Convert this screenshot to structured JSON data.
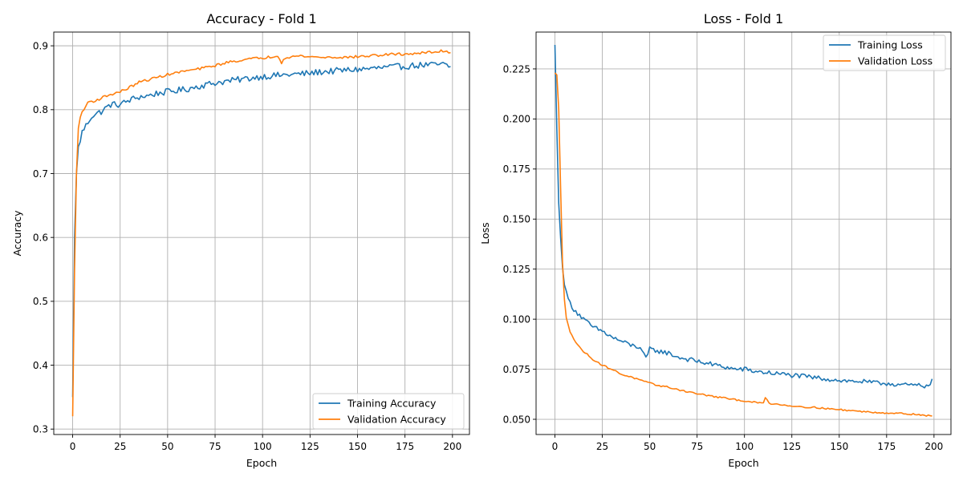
{
  "chart_data": [
    {
      "type": "line",
      "title": "Accuracy - Fold 1",
      "xlabel": "Epoch",
      "ylabel": "Accuracy",
      "xlim": [
        -9.95,
        208.95
      ],
      "ylim": [
        0.2915,
        0.9215
      ],
      "xticks": [
        0,
        25,
        50,
        75,
        100,
        125,
        150,
        175,
        200
      ],
      "yticks": [
        0.3,
        0.4,
        0.5,
        0.6,
        0.7,
        0.8,
        0.9
      ],
      "ytick_decimals": 1,
      "grid": true,
      "legend_position": "lower-right",
      "epochs": 200,
      "series": [
        {
          "name": "Training Accuracy",
          "color": "#1f77b4",
          "points": [
            [
              0,
              0.35
            ],
            [
              1,
              0.6
            ],
            [
              2,
              0.7
            ],
            [
              3,
              0.74
            ],
            [
              5,
              0.765
            ],
            [
              8,
              0.78
            ],
            [
              10,
              0.79
            ],
            [
              15,
              0.797
            ],
            [
              20,
              0.808
            ],
            [
              25,
              0.808
            ],
            [
              30,
              0.815
            ],
            [
              35,
              0.82
            ],
            [
              40,
              0.822
            ],
            [
              45,
              0.826
            ],
            [
              50,
              0.828
            ],
            [
              55,
              0.83
            ],
            [
              60,
              0.832
            ],
            [
              65,
              0.836
            ],
            [
              70,
              0.839
            ],
            [
              75,
              0.842
            ],
            [
              80,
              0.844
            ],
            [
              85,
              0.846
            ],
            [
              90,
              0.848
            ],
            [
              95,
              0.85
            ],
            [
              100,
              0.852
            ],
            [
              105,
              0.853
            ],
            [
              110,
              0.854
            ],
            [
              115,
              0.855
            ],
            [
              120,
              0.856
            ],
            [
              125,
              0.857
            ],
            [
              130,
              0.859
            ],
            [
              135,
              0.86
            ],
            [
              140,
              0.861
            ],
            [
              145,
              0.862
            ],
            [
              150,
              0.863
            ],
            [
              155,
              0.864
            ],
            [
              160,
              0.865
            ],
            [
              165,
              0.866
            ],
            [
              170,
              0.867
            ],
            [
              175,
              0.868
            ],
            [
              180,
              0.869
            ],
            [
              185,
              0.87
            ],
            [
              190,
              0.87
            ],
            [
              195,
              0.871
            ],
            [
              199,
              0.866
            ]
          ],
          "noise": 0.005
        },
        {
          "name": "Validation Accuracy",
          "color": "#ff7f0e",
          "points": [
            [
              0,
              0.32
            ],
            [
              1,
              0.55
            ],
            [
              2,
              0.7
            ],
            [
              3,
              0.77
            ],
            [
              4,
              0.79
            ],
            [
              6,
              0.8
            ],
            [
              8,
              0.812
            ],
            [
              12,
              0.814
            ],
            [
              18,
              0.822
            ],
            [
              25,
              0.828
            ],
            [
              30,
              0.835
            ],
            [
              35,
              0.843
            ],
            [
              40,
              0.847
            ],
            [
              45,
              0.851
            ],
            [
              50,
              0.855
            ],
            [
              55,
              0.858
            ],
            [
              60,
              0.861
            ],
            [
              65,
              0.863
            ],
            [
              70,
              0.866
            ],
            [
              75,
              0.869
            ],
            [
              80,
              0.873
            ],
            [
              85,
              0.876
            ],
            [
              90,
              0.878
            ],
            [
              95,
              0.88
            ],
            [
              100,
              0.881
            ],
            [
              105,
              0.883
            ],
            [
              108,
              0.885
            ],
            [
              110,
              0.874
            ],
            [
              112,
              0.882
            ],
            [
              115,
              0.883
            ],
            [
              120,
              0.884
            ],
            [
              125,
              0.883
            ],
            [
              130,
              0.882
            ],
            [
              135,
              0.882
            ],
            [
              140,
              0.882
            ],
            [
              145,
              0.882
            ],
            [
              150,
              0.883
            ],
            [
              155,
              0.884
            ],
            [
              160,
              0.885
            ],
            [
              165,
              0.886
            ],
            [
              170,
              0.887
            ],
            [
              175,
              0.887
            ],
            [
              180,
              0.888
            ],
            [
              185,
              0.889
            ],
            [
              190,
              0.89
            ],
            [
              195,
              0.892
            ],
            [
              199,
              0.89
            ]
          ],
          "noise": 0.002
        }
      ]
    },
    {
      "type": "line",
      "title": "Loss - Fold 1",
      "xlabel": "Epoch",
      "ylabel": "Loss",
      "xlim": [
        -9.95,
        208.95
      ],
      "ylim": [
        0.0424,
        0.2434
      ],
      "xticks": [
        0,
        25,
        50,
        75,
        100,
        125,
        150,
        175,
        200
      ],
      "yticks": [
        0.05,
        0.075,
        0.1,
        0.125,
        0.15,
        0.175,
        0.2,
        0.225
      ],
      "ytick_decimals": 3,
      "grid": true,
      "legend_position": "upper-right",
      "epochs": 200,
      "series": [
        {
          "name": "Training Loss",
          "color": "#1f77b4",
          "points": [
            [
              0,
              0.237
            ],
            [
              1,
              0.195
            ],
            [
              2,
              0.158
            ],
            [
              3,
              0.14
            ],
            [
              4,
              0.127
            ],
            [
              5,
              0.118
            ],
            [
              6,
              0.113
            ],
            [
              8,
              0.108
            ],
            [
              10,
              0.105
            ],
            [
              15,
              0.1
            ],
            [
              20,
              0.096
            ],
            [
              25,
              0.094
            ],
            [
              30,
              0.091
            ],
            [
              35,
              0.089
            ],
            [
              40,
              0.087
            ],
            [
              45,
              0.086
            ],
            [
              48,
              0.08
            ],
            [
              50,
              0.085
            ],
            [
              55,
              0.084
            ],
            [
              60,
              0.083
            ],
            [
              65,
              0.081
            ],
            [
              70,
              0.08
            ],
            [
              75,
              0.079
            ],
            [
              80,
              0.078
            ],
            [
              85,
              0.077
            ],
            [
              90,
              0.076
            ],
            [
              95,
              0.075
            ],
            [
              100,
              0.075
            ],
            [
              105,
              0.074
            ],
            [
              110,
              0.0735
            ],
            [
              115,
              0.073
            ],
            [
              120,
              0.0725
            ],
            [
              125,
              0.072
            ],
            [
              130,
              0.0715
            ],
            [
              135,
              0.071
            ],
            [
              140,
              0.0705
            ],
            [
              145,
              0.07
            ],
            [
              150,
              0.0695
            ],
            [
              155,
              0.069
            ],
            [
              160,
              0.069
            ],
            [
              165,
              0.0685
            ],
            [
              170,
              0.068
            ],
            [
              175,
              0.068
            ],
            [
              180,
              0.0675
            ],
            [
              185,
              0.067
            ],
            [
              190,
              0.067
            ],
            [
              195,
              0.0665
            ],
            [
              199,
              0.069
            ]
          ],
          "noise": 0.0012
        },
        {
          "name": "Validation Loss",
          "color": "#ff7f0e",
          "points": [
            [
              0,
              0.223
            ],
            [
              1,
              0.222
            ],
            [
              2,
              0.205
            ],
            [
              3,
              0.165
            ],
            [
              4,
              0.128
            ],
            [
              5,
              0.11
            ],
            [
              6,
              0.101
            ],
            [
              8,
              0.094
            ],
            [
              10,
              0.09
            ],
            [
              12,
              0.087
            ],
            [
              15,
              0.084
            ],
            [
              20,
              0.08
            ],
            [
              25,
              0.077
            ],
            [
              30,
              0.075
            ],
            [
              35,
              0.0725
            ],
            [
              40,
              0.0712
            ],
            [
              45,
              0.0695
            ],
            [
              50,
              0.068
            ],
            [
              55,
              0.0668
            ],
            [
              60,
              0.066
            ],
            [
              65,
              0.0648
            ],
            [
              70,
              0.0638
            ],
            [
              75,
              0.0628
            ],
            [
              80,
              0.062
            ],
            [
              85,
              0.0612
            ],
            [
              90,
              0.0605
            ],
            [
              95,
              0.0598
            ],
            [
              100,
              0.0592
            ],
            [
              105,
              0.0585
            ],
            [
              110,
              0.058
            ],
            [
              111,
              0.061
            ],
            [
              113,
              0.058
            ],
            [
              115,
              0.0578
            ],
            [
              120,
              0.0572
            ],
            [
              125,
              0.0567
            ],
            [
              130,
              0.0563
            ],
            [
              135,
              0.056
            ],
            [
              140,
              0.0557
            ],
            [
              145,
              0.0552
            ],
            [
              150,
              0.0548
            ],
            [
              155,
              0.0545
            ],
            [
              160,
              0.054
            ],
            [
              165,
              0.0537
            ],
            [
              170,
              0.0534
            ],
            [
              175,
              0.0532
            ],
            [
              180,
              0.053
            ],
            [
              185,
              0.0528
            ],
            [
              190,
              0.0525
            ],
            [
              195,
              0.052
            ],
            [
              199,
              0.0515
            ]
          ],
          "noise": 0.0004
        }
      ]
    }
  ]
}
